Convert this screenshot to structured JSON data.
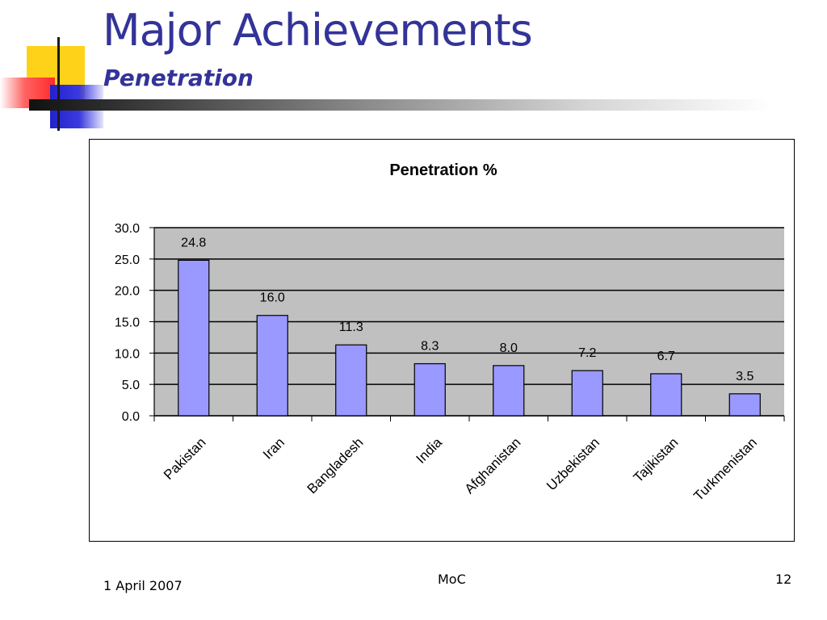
{
  "slide": {
    "title": "Major Achievements",
    "subtitle": "Penetration"
  },
  "footer": {
    "date": "1 April 2007",
    "org": "MoC",
    "page": "12"
  },
  "colors": {
    "title": "#333399",
    "bar_fill": "#9999ff",
    "plot_background": "#c0c0c0"
  },
  "chart_data": {
    "type": "bar",
    "title": "Penetration %",
    "xlabel": "",
    "ylabel": "",
    "categories": [
      "Pakistan",
      "Iran",
      "Bangladesh",
      "India",
      "Afghanistan",
      "Uzbekistan",
      "Tajikistan",
      "Turkmenistan"
    ],
    "values": [
      24.8,
      16.0,
      11.3,
      8.3,
      8.0,
      7.2,
      6.7,
      3.5
    ],
    "data_labels": [
      "24.8",
      "16.0",
      "11.3",
      "8.3",
      "8.0",
      "7.2",
      "6.7",
      "3.5"
    ],
    "ylim": [
      0,
      30
    ],
    "yticks": [
      "0.0",
      "5.0",
      "10.0",
      "15.0",
      "20.0",
      "25.0",
      "30.0"
    ],
    "grid": true,
    "legend": "none"
  }
}
